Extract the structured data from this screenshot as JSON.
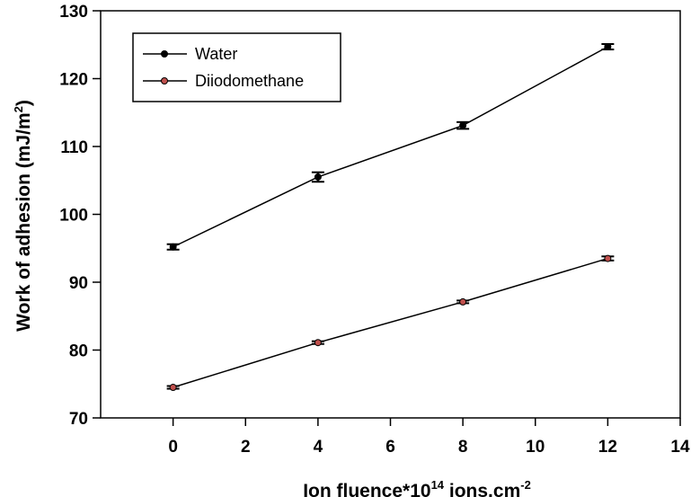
{
  "chart_data": {
    "type": "line",
    "x": [
      0,
      4,
      8,
      12
    ],
    "series": [
      {
        "name": "Water",
        "values": [
          95.2,
          105.5,
          113.1,
          124.7
        ],
        "errors": [
          0.4,
          0.7,
          0.5,
          0.4
        ],
        "marker_color": "#000000",
        "line_color": "#000000"
      },
      {
        "name": "Diiodomethane",
        "values": [
          74.5,
          81.1,
          87.1,
          93.5
        ],
        "errors": [
          0.2,
          0.2,
          0.2,
          0.3
        ],
        "marker_color": "#c0504d",
        "line_color": "#000000"
      }
    ],
    "xlim": [
      -2,
      14
    ],
    "ylim": [
      70,
      130
    ],
    "xticks": [
      0,
      2,
      4,
      6,
      8,
      10,
      12,
      14
    ],
    "yticks": [
      70,
      80,
      90,
      100,
      110,
      120,
      130
    ],
    "xlabel": {
      "main": "Ion fluence*10",
      "sup": "14",
      "mid": " ions.cm",
      "sup2": "-2"
    },
    "ylabel": {
      "main": "Work of adhesion (mJ/m",
      "sup": "2",
      "end": ")"
    },
    "legend_position": "top-left",
    "grid": false
  }
}
